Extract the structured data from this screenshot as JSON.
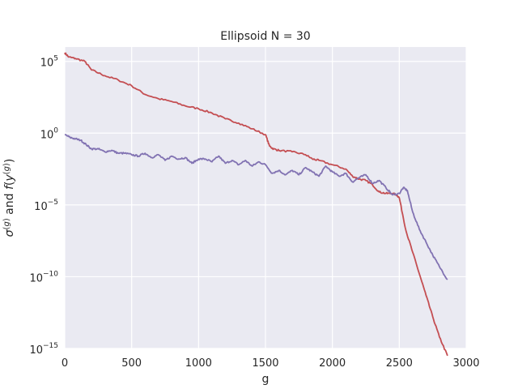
{
  "chart_data": {
    "type": "line",
    "title": "Ellipsoid N = 30",
    "xlabel": "g",
    "ylabel": "σ^(g)  and  f(y^(g))",
    "xlim": [
      0,
      3000
    ],
    "ylim_log10": [
      -15,
      6
    ],
    "yscale": "log",
    "grid": true,
    "legend": "none",
    "x_ticks": [
      {
        "value": 0,
        "label": "0"
      },
      {
        "value": 500,
        "label": "500"
      },
      {
        "value": 1000,
        "label": "1000"
      },
      {
        "value": 1500,
        "label": "1500"
      },
      {
        "value": 2000,
        "label": "2000"
      },
      {
        "value": 2500,
        "label": "2500"
      },
      {
        "value": 3000,
        "label": "3000"
      }
    ],
    "y_ticks": [
      {
        "log10": 5,
        "base": "10",
        "exp": "5"
      },
      {
        "log10": 0,
        "base": "10",
        "exp": "0"
      },
      {
        "log10": -5,
        "base": "10",
        "exp": "−5"
      },
      {
        "log10": -10,
        "base": "10",
        "exp": "−10"
      },
      {
        "log10": -15,
        "base": "10",
        "exp": "−15"
      }
    ],
    "series": [
      {
        "color": "#c44e52",
        "x": [
          0,
          30,
          80,
          150,
          200,
          300,
          400,
          500,
          600,
          700,
          800,
          900,
          1000,
          1100,
          1200,
          1300,
          1400,
          1500,
          1530,
          1560,
          1600,
          1700,
          1800,
          1850,
          1900,
          2000,
          2100,
          2150,
          2200,
          2250,
          2300,
          2350,
          2400,
          2450,
          2480,
          2500,
          2550,
          2600,
          2650,
          2700,
          2750,
          2800,
          2860
        ],
        "log10_y": [
          5.6,
          5.3,
          5.2,
          5.0,
          4.4,
          4.0,
          3.7,
          3.3,
          2.7,
          2.4,
          2.2,
          1.9,
          1.7,
          1.4,
          1.0,
          0.7,
          0.3,
          -0.1,
          -0.9,
          -1.1,
          -1.2,
          -1.3,
          -1.5,
          -1.8,
          -1.9,
          -2.2,
          -2.5,
          -3.0,
          -3.2,
          -3.3,
          -3.6,
          -4.1,
          -4.2,
          -4.2,
          -4.3,
          -4.5,
          -6.8,
          -8.3,
          -9.8,
          -11.3,
          -12.8,
          -14.2,
          -15.5
        ]
      },
      {
        "color": "#8172b2",
        "x": [
          0,
          40,
          80,
          120,
          160,
          200,
          250,
          300,
          350,
          400,
          450,
          500,
          550,
          600,
          650,
          700,
          750,
          800,
          850,
          900,
          950,
          1000,
          1050,
          1100,
          1150,
          1200,
          1250,
          1300,
          1350,
          1400,
          1450,
          1500,
          1550,
          1600,
          1650,
          1700,
          1750,
          1800,
          1850,
          1900,
          1950,
          2000,
          2050,
          2100,
          2150,
          2200,
          2250,
          2300,
          2350,
          2400,
          2450,
          2500,
          2530,
          2560,
          2600,
          2650,
          2700,
          2750,
          2800,
          2860
        ],
        "log10_y": [
          -0.1,
          -0.3,
          -0.4,
          -0.5,
          -0.8,
          -1.1,
          -1.1,
          -1.3,
          -1.2,
          -1.4,
          -1.4,
          -1.5,
          -1.6,
          -1.4,
          -1.7,
          -1.5,
          -1.9,
          -1.6,
          -1.8,
          -1.7,
          -2.1,
          -1.8,
          -1.8,
          -2.0,
          -1.6,
          -2.1,
          -1.9,
          -2.2,
          -1.9,
          -2.3,
          -2.0,
          -2.2,
          -2.8,
          -2.6,
          -2.9,
          -2.6,
          -2.9,
          -2.4,
          -2.7,
          -3.0,
          -2.3,
          -2.7,
          -3.0,
          -2.8,
          -3.4,
          -3.1,
          -2.9,
          -3.5,
          -3.3,
          -3.8,
          -4.3,
          -4.2,
          -3.8,
          -4.0,
          -5.5,
          -6.7,
          -7.6,
          -8.5,
          -9.3,
          -10.2
        ]
      }
    ]
  }
}
